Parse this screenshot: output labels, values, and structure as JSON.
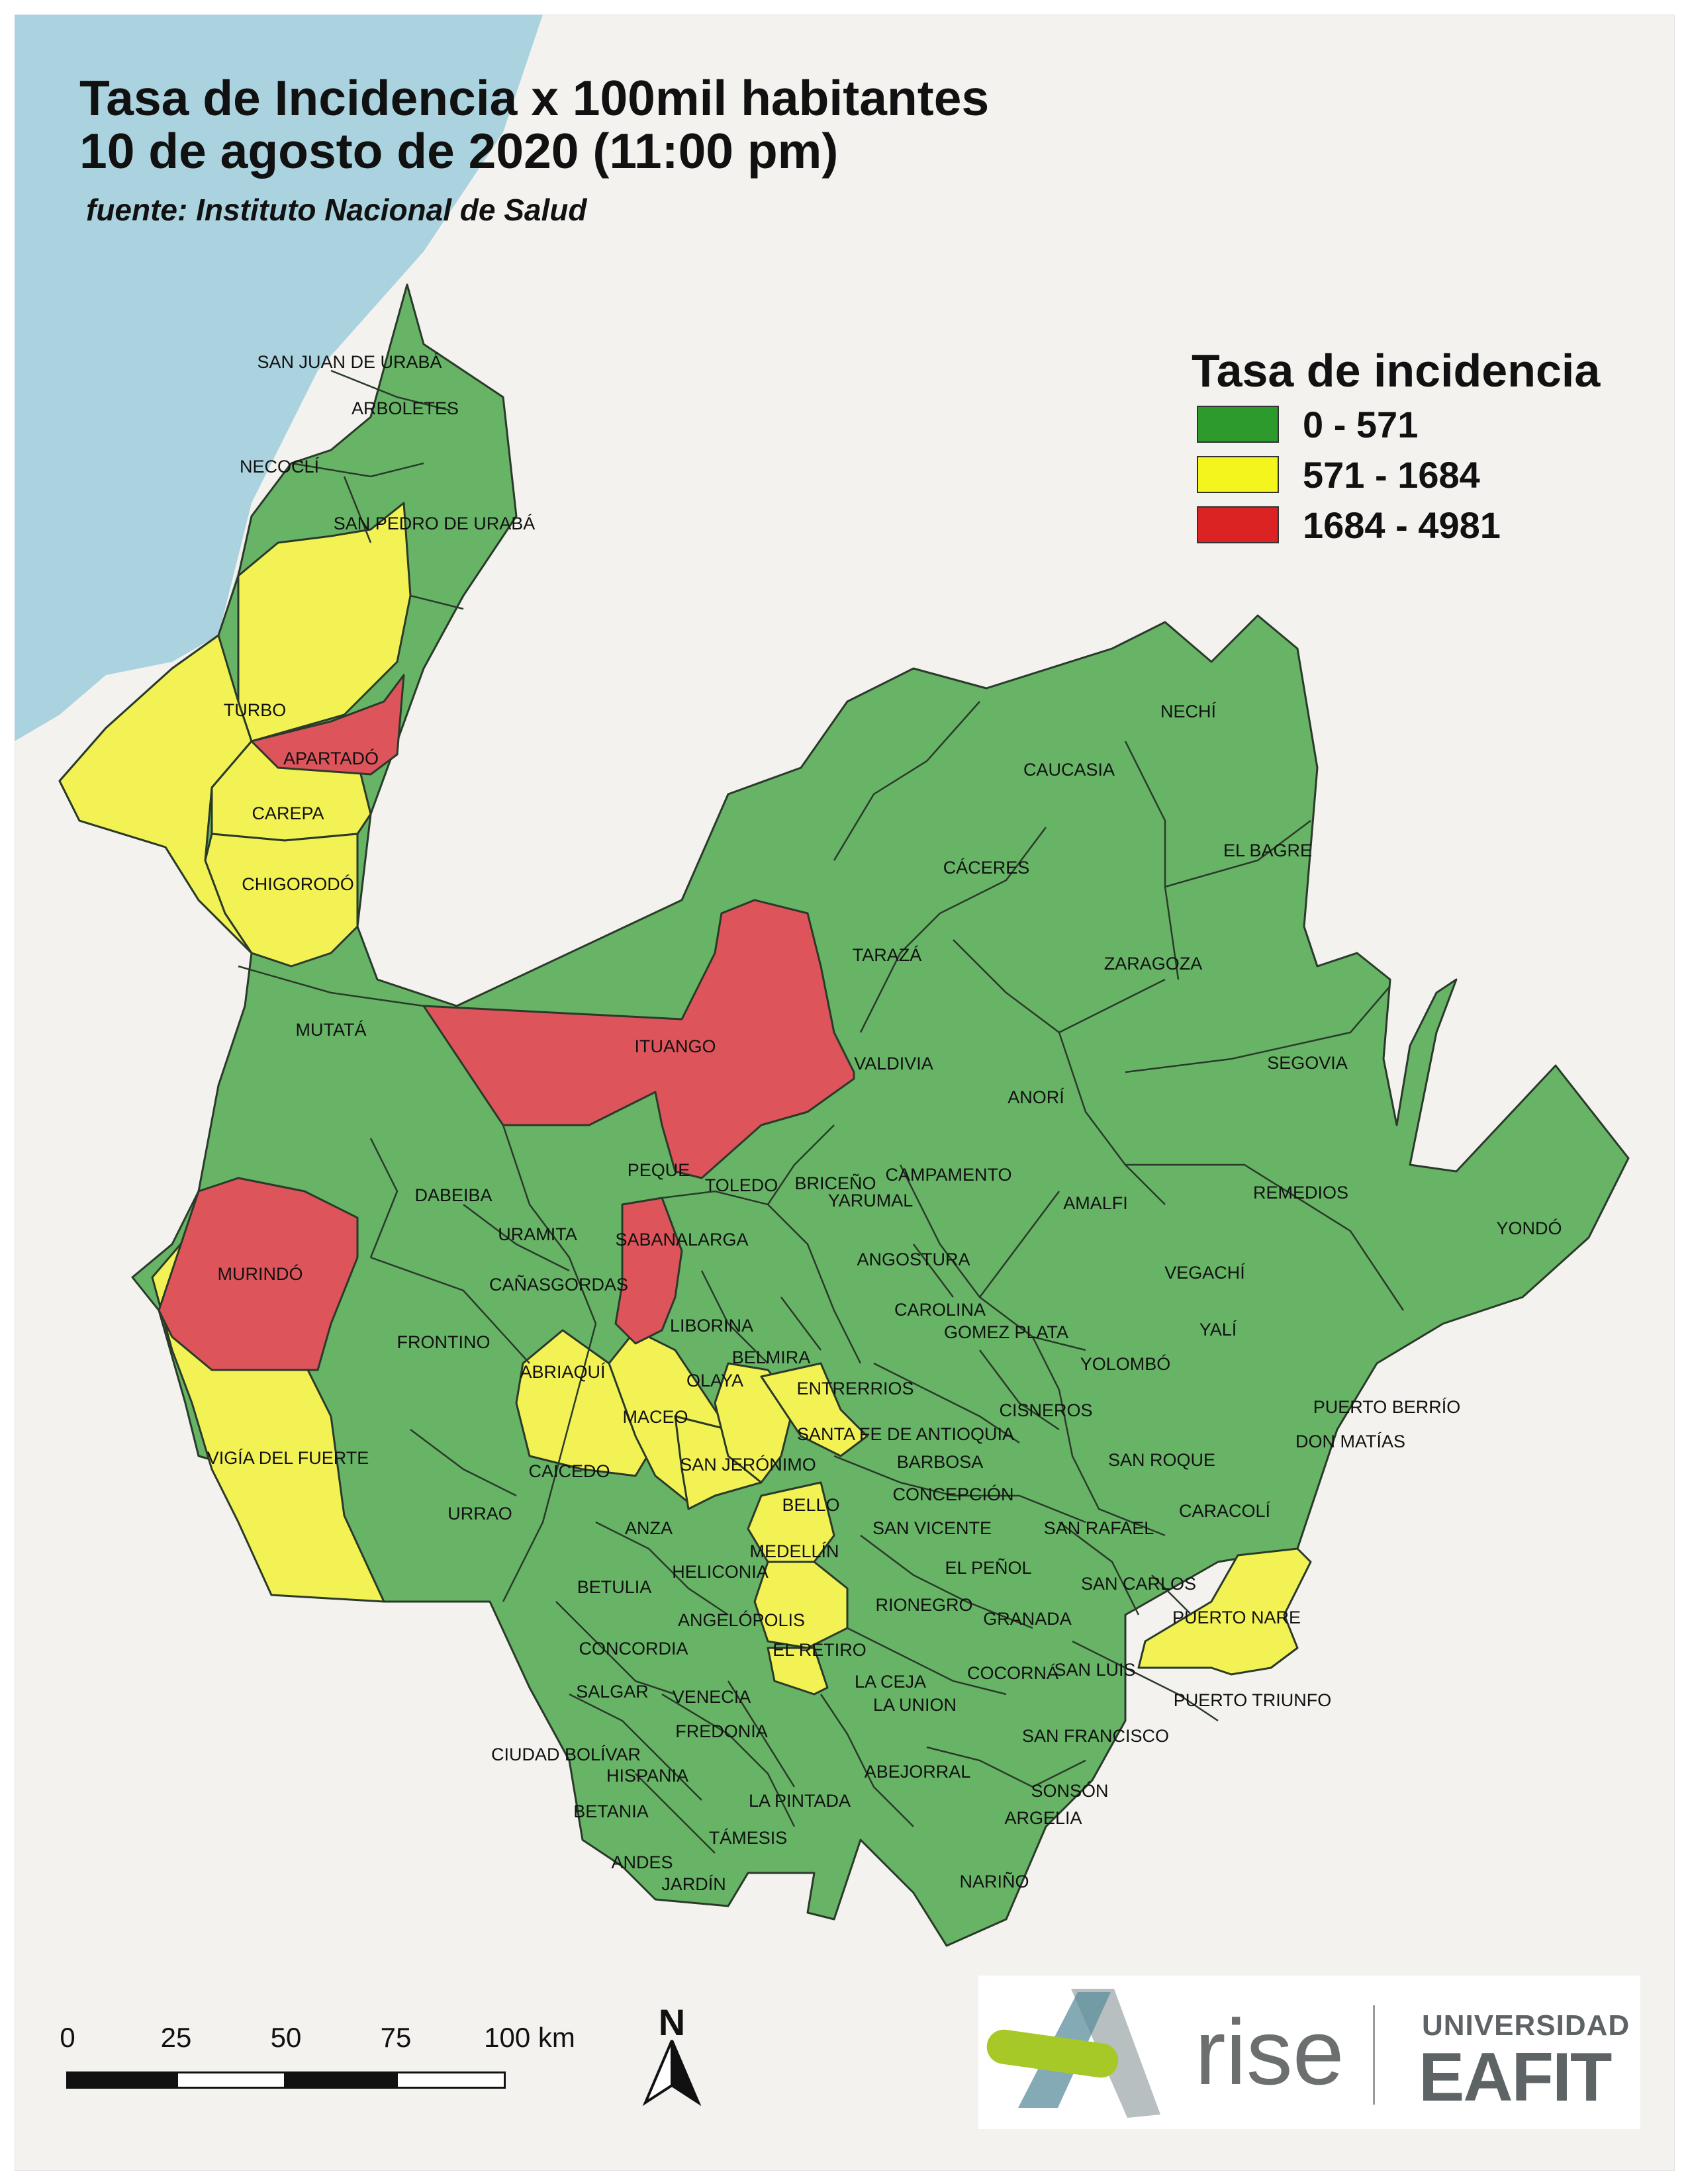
{
  "title": {
    "line1": "Tasa de Incidencia x 100mil habitantes",
    "line2": "10 de agosto de 2020 (11:00 pm)",
    "source": "fuente: Instituto Nacional de Salud"
  },
  "legend": {
    "title": "Tasa de incidencia",
    "classes": [
      {
        "label": "0 - 571",
        "color": "#2d9a2d"
      },
      {
        "label": "571 - 1684",
        "color": "#f5f51e"
      },
      {
        "label": "1684 - 4981",
        "color": "#dc2323"
      }
    ]
  },
  "colors": {
    "green_fill": "#67b466",
    "yellow_fill": "#f3f254",
    "red_fill": "#dd545b",
    "border": "#2a3a2a",
    "sea": "#aad3df",
    "land_bg": "#f3f2ee"
  },
  "municipalities": [
    {
      "name": "SAN JUAN DE URABÁ",
      "class": "0 - 571"
    },
    {
      "name": "ARBOLETES",
      "class": "0 - 571"
    },
    {
      "name": "NECOCLÍ",
      "class": "0 - 571"
    },
    {
      "name": "SAN PEDRO DE URABÁ",
      "class": "0 - 571"
    },
    {
      "name": "TURBO",
      "class": "571 - 1684"
    },
    {
      "name": "APARTADÓ",
      "class": "1684 - 4981"
    },
    {
      "name": "CAREPA",
      "class": "571 - 1684"
    },
    {
      "name": "CHIGORODÓ",
      "class": "571 - 1684"
    },
    {
      "name": "MUTATÁ",
      "class": "0 - 571"
    },
    {
      "name": "ITUANGO",
      "class": "1684 - 4981"
    },
    {
      "name": "TARAZÁ",
      "class": "0 - 571"
    },
    {
      "name": "CÁCERES",
      "class": "0 - 571"
    },
    {
      "name": "CAUCASIA",
      "class": "0 - 571"
    },
    {
      "name": "NECHÍ",
      "class": "0 - 571"
    },
    {
      "name": "EL BAGRE",
      "class": "0 - 571"
    },
    {
      "name": "ZARAGOZA",
      "class": "0 - 571"
    },
    {
      "name": "SEGOVIA",
      "class": "0 - 571"
    },
    {
      "name": "VALDIVIA",
      "class": "0 - 571"
    },
    {
      "name": "ANORÍ",
      "class": "0 - 571"
    },
    {
      "name": "BRICEÑO",
      "class": "0 - 571"
    },
    {
      "name": "PEQUE",
      "class": "0 - 571"
    },
    {
      "name": "TOLEDO",
      "class": "0 - 571"
    },
    {
      "name": "CAMPAMENTO",
      "class": "0 - 571"
    },
    {
      "name": "YARUMAL",
      "class": "0 - 571"
    },
    {
      "name": "AMALFI",
      "class": "0 - 571"
    },
    {
      "name": "REMEDIOS",
      "class": "0 - 571"
    },
    {
      "name": "YONDÓ",
      "class": "0 - 571"
    },
    {
      "name": "DABEIBA",
      "class": "0 - 571"
    },
    {
      "name": "URAMITA",
      "class": "0 - 571"
    },
    {
      "name": "SABANALARGA",
      "class": "1684 - 4981"
    },
    {
      "name": "CAÑASGORDAS",
      "class": "0 - 571"
    },
    {
      "name": "MURINDÓ",
      "class": "1684 - 4981"
    },
    {
      "name": "ANGOSTURA",
      "class": "0 - 571"
    },
    {
      "name": "VEGACHÍ",
      "class": "0 - 571"
    },
    {
      "name": "CAROLINA",
      "class": "0 - 571"
    },
    {
      "name": "GOMEZ PLATA",
      "class": "0 - 571"
    },
    {
      "name": "YALÍ",
      "class": "0 - 571"
    },
    {
      "name": "LIBORINA",
      "class": "0 - 571"
    },
    {
      "name": "FRONTINO",
      "class": "0 - 571"
    },
    {
      "name": "BELMIRA",
      "class": "571 - 1684"
    },
    {
      "name": "YOLOMBÓ",
      "class": "0 - 571"
    },
    {
      "name": "ABRIAQUÍ",
      "class": "571 - 1684"
    },
    {
      "name": "OLAYA",
      "class": "571 - 1684"
    },
    {
      "name": "ENTRERRIOS",
      "class": "571 - 1684"
    },
    {
      "name": "CISNEROS",
      "class": "0 - 571"
    },
    {
      "name": "MACEO",
      "class": "0 - 571"
    },
    {
      "name": "SANTA FE DE ANTIOQUIA",
      "class": "571 - 1684"
    },
    {
      "name": "DON MATÍAS",
      "class": "0 - 571"
    },
    {
      "name": "PUERTO BERRÍO",
      "class": "0 - 571"
    },
    {
      "name": "VIGÍA DEL FUERTE",
      "class": "571 - 1684"
    },
    {
      "name": "CAICEDO",
      "class": "571 - 1684"
    },
    {
      "name": "SAN JERÓNIMO",
      "class": "571 - 1684"
    },
    {
      "name": "BARBOSA",
      "class": "0 - 571"
    },
    {
      "name": "SAN ROQUE",
      "class": "0 - 571"
    },
    {
      "name": "CONCEPCIÓN",
      "class": "0 - 571"
    },
    {
      "name": "CARACOLÍ",
      "class": "0 - 571"
    },
    {
      "name": "URRAO",
      "class": "0 - 571"
    },
    {
      "name": "BELLO",
      "class": "571 - 1684"
    },
    {
      "name": "ANZA",
      "class": "0 - 571"
    },
    {
      "name": "SAN VICENTE",
      "class": "0 - 571"
    },
    {
      "name": "SAN RAFAEL",
      "class": "0 - 571"
    },
    {
      "name": "MEDELLÍN",
      "class": "571 - 1684"
    },
    {
      "name": "BETULIA",
      "class": "0 - 571"
    },
    {
      "name": "HELICONIA",
      "class": "0 - 571"
    },
    {
      "name": "EL PEÑOL",
      "class": "0 - 571"
    },
    {
      "name": "SAN CARLOS",
      "class": "0 - 571"
    },
    {
      "name": "RIONEGRO",
      "class": "0 - 571"
    },
    {
      "name": "ANGELÓPOLIS",
      "class": "0 - 571"
    },
    {
      "name": "GRANADA",
      "class": "0 - 571"
    },
    {
      "name": "PUERTO NARE",
      "class": "571 - 1684"
    },
    {
      "name": "CONCORDIA",
      "class": "0 - 571"
    },
    {
      "name": "EL RETIRO",
      "class": "571 - 1684"
    },
    {
      "name": "COCORNÁ",
      "class": "0 - 571"
    },
    {
      "name": "SAN LUIS",
      "class": "0 - 571"
    },
    {
      "name": "LA CEJA",
      "class": "0 - 571"
    },
    {
      "name": "SALGAR",
      "class": "0 - 571"
    },
    {
      "name": "VENECIA",
      "class": "0 - 571"
    },
    {
      "name": "LA UNION",
      "class": "0 - 571"
    },
    {
      "name": "PUERTO TRIUNFO",
      "class": "0 - 571"
    },
    {
      "name": "FREDONIA",
      "class": "0 - 571"
    },
    {
      "name": "SAN FRANCISCO",
      "class": "0 - 571"
    },
    {
      "name": "CIUDAD BOLÍVAR",
      "class": "0 - 571"
    },
    {
      "name": "HISPANIA",
      "class": "0 - 571"
    },
    {
      "name": "ABEJORRAL",
      "class": "0 - 571"
    },
    {
      "name": "SONSÓN",
      "class": "0 - 571"
    },
    {
      "name": "LA PINTADA",
      "class": "0 - 571"
    },
    {
      "name": "BETANIA",
      "class": "0 - 571"
    },
    {
      "name": "ARGELIA",
      "class": "0 - 571"
    },
    {
      "name": "TÁMESIS",
      "class": "0 - 571"
    },
    {
      "name": "ANDES",
      "class": "0 - 571"
    },
    {
      "name": "JARDÍN",
      "class": "0 - 571"
    },
    {
      "name": "NARIÑO",
      "class": "0 - 571"
    }
  ],
  "scale_bar": {
    "ticks": [
      "0",
      "25",
      "50",
      "75",
      "100 km"
    ]
  },
  "north_arrow": {
    "label": "N"
  },
  "logos": {
    "rise": "rise",
    "university_line1": "UNIVERSIDAD",
    "university_line2": "EAFIT"
  }
}
